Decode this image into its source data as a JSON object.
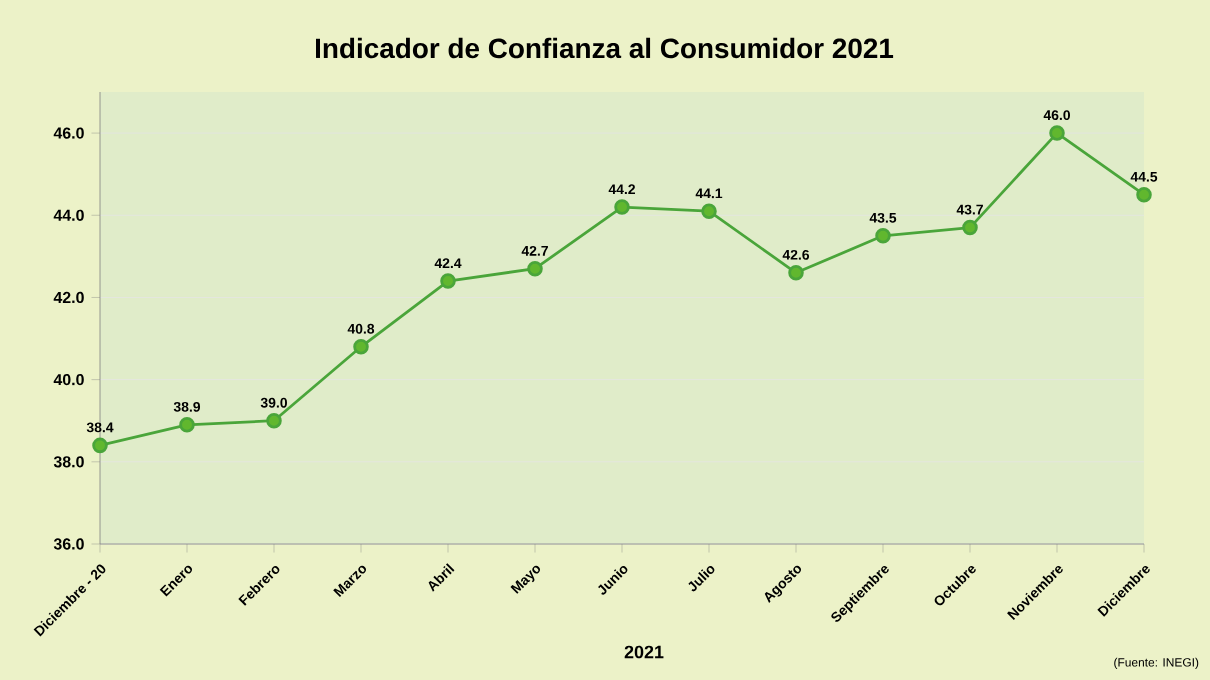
{
  "chart_data": {
    "type": "line",
    "title": "Indicador de Confianza al Consumidor 2021",
    "xlabel": "2021",
    "categories": [
      "Diciembre - 20",
      "Enero",
      "Febrero",
      "Marzo",
      "Abril",
      "Mayo",
      "Junio",
      "Julio",
      "Agosto",
      "Septiembre",
      "Octubre",
      "Noviembre",
      "Diciembre"
    ],
    "series": [
      {
        "color": "#4aa53a",
        "values": [
          38.4,
          38.9,
          39.0,
          40.8,
          42.4,
          42.7,
          44.2,
          44.1,
          42.6,
          43.5,
          43.7,
          46.0,
          44.5
        ],
        "value_labels": [
          "38.4",
          "38.9",
          "39.0",
          "40.8",
          "42.4",
          "42.7",
          "44.2",
          "44.1",
          "42.6",
          "43.5",
          "43.7",
          "46.0",
          "44.5"
        ]
      }
    ],
    "ylim": [
      36,
      47
    ],
    "yticks": [
      {
        "value": 36,
        "label": "36.0"
      },
      {
        "value": 38,
        "label": "38.0"
      },
      {
        "value": 40,
        "label": "40.0"
      },
      {
        "value": 42,
        "label": "42.0"
      },
      {
        "value": 44,
        "label": "44.0"
      },
      {
        "value": 46,
        "label": "46.0"
      }
    ],
    "grid": "y",
    "marker": "circle",
    "line_style": "solid",
    "annotations": [
      "(Fuente: INEGI)"
    ]
  }
}
